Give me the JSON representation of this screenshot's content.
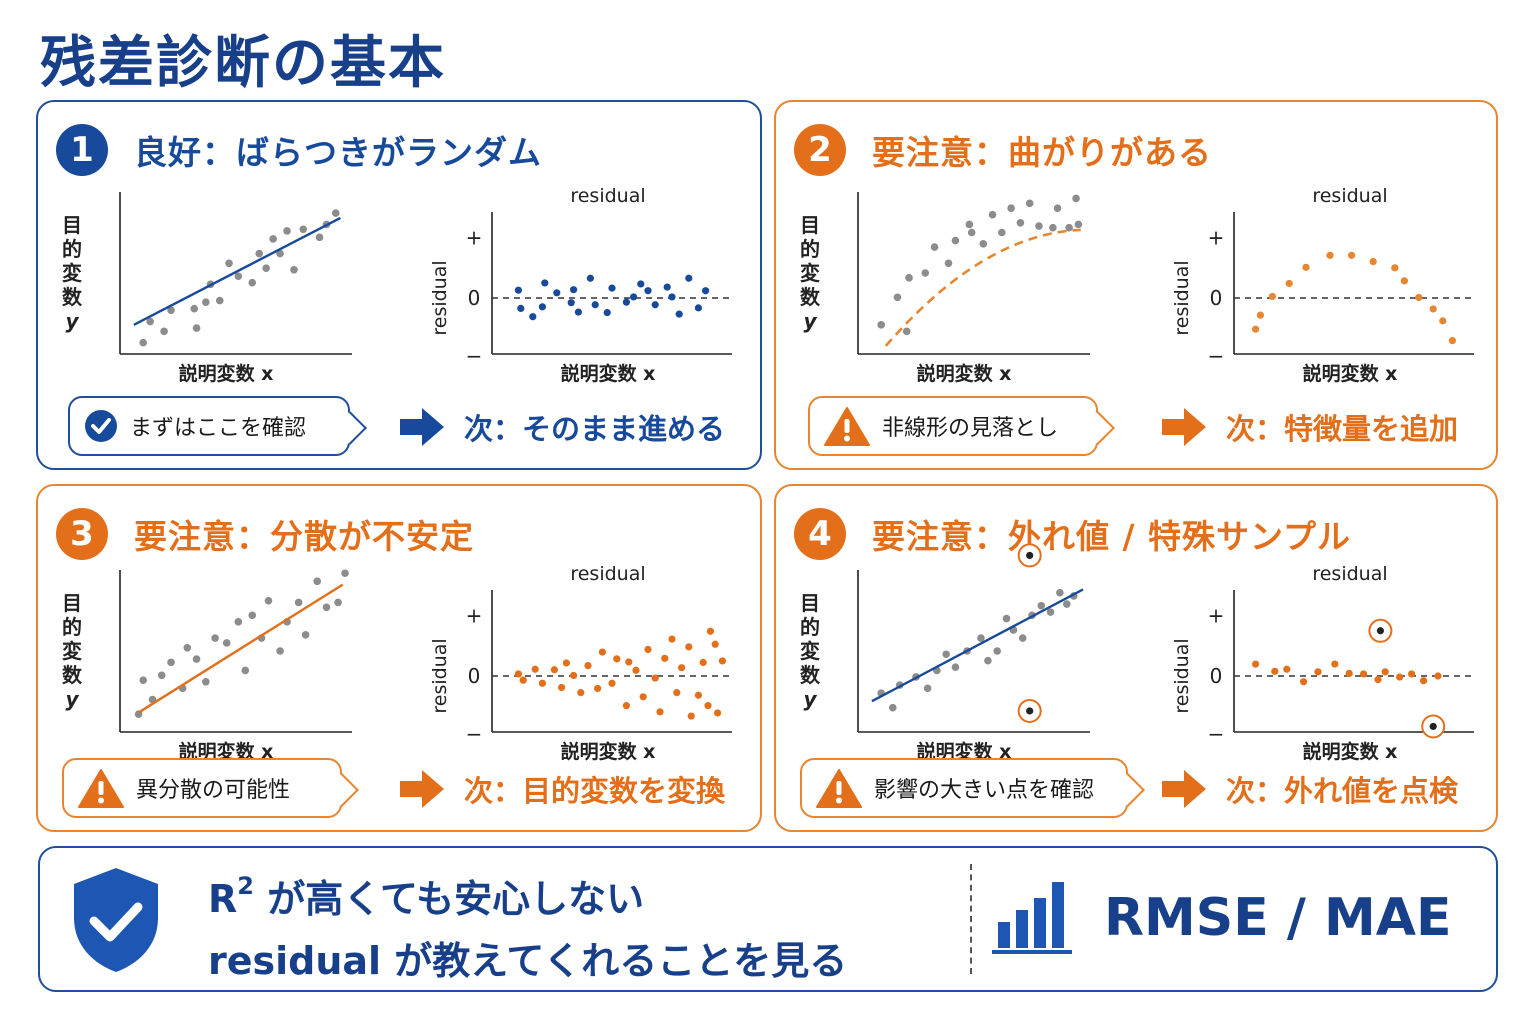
{
  "title": "残差診断の基本",
  "colors": {
    "blue": "#174a9a",
    "orange": "#e46f1b",
    "gray": "#8c8c8c",
    "orange_line": "#e8852f"
  },
  "panels": [
    {
      "number": "1",
      "theme": "blue",
      "title": "良好：ばらつきがランダム",
      "callout": "まずはここを確認",
      "callout_icon": "check-circle-icon",
      "next": "次：そのまま進める"
    },
    {
      "number": "2",
      "theme": "orange",
      "title": "要注意：曲がりがある",
      "callout": "非線形の見落とし",
      "callout_icon": "warning-icon",
      "next": "次：特徴量を追加"
    },
    {
      "number": "3",
      "theme": "orange",
      "title": "要注意：分散が不安定",
      "callout": "異分散の可能性",
      "callout_icon": "warning-icon",
      "next": "次：目的変数を変換"
    },
    {
      "number": "4",
      "theme": "orange",
      "title": "要注意：外れ値 / 特殊サンプル",
      "callout": "影響の大きい点を確認",
      "callout_icon": "warning-icon",
      "next": "次：外れ値を点検"
    }
  ],
  "axis_labels": {
    "ylabel": [
      "目",
      "的",
      "変",
      "数",
      "y"
    ],
    "xlabel": "説明変数 x",
    "residual": "residual",
    "plus": "+",
    "zero": "0",
    "minus": "−"
  },
  "chart_data": [
    {
      "panel": 1,
      "type": "scatter",
      "kind": "fit",
      "fit": "linear",
      "line_color": "#174a9a",
      "points": [
        [
          0.1,
          0.07
        ],
        [
          0.13,
          0.2
        ],
        [
          0.19,
          0.14
        ],
        [
          0.22,
          0.27
        ],
        [
          0.32,
          0.28
        ],
        [
          0.33,
          0.16
        ],
        [
          0.37,
          0.32
        ],
        [
          0.39,
          0.43
        ],
        [
          0.43,
          0.33
        ],
        [
          0.47,
          0.56
        ],
        [
          0.51,
          0.48
        ],
        [
          0.57,
          0.44
        ],
        [
          0.6,
          0.62
        ],
        [
          0.63,
          0.53
        ],
        [
          0.66,
          0.71
        ],
        [
          0.69,
          0.62
        ],
        [
          0.72,
          0.76
        ],
        [
          0.75,
          0.52
        ],
        [
          0.79,
          0.77
        ],
        [
          0.86,
          0.72
        ],
        [
          0.89,
          0.8
        ],
        [
          0.93,
          0.87
        ]
      ],
      "line": [
        [
          0.06,
          0.18
        ],
        [
          0.95,
          0.84
        ]
      ]
    },
    {
      "panel": 1,
      "type": "scatter",
      "kind": "residual",
      "color": "#174a9a",
      "points": [
        [
          0.11,
          0.15
        ],
        [
          0.12,
          -0.2
        ],
        [
          0.17,
          -0.36
        ],
        [
          0.21,
          -0.17
        ],
        [
          0.22,
          0.29
        ],
        [
          0.27,
          0.1
        ],
        [
          0.33,
          -0.09
        ],
        [
          0.34,
          0.16
        ],
        [
          0.36,
          -0.27
        ],
        [
          0.41,
          0.38
        ],
        [
          0.43,
          -0.13
        ],
        [
          0.48,
          -0.28
        ],
        [
          0.5,
          0.19
        ],
        [
          0.56,
          -0.08
        ],
        [
          0.59,
          0.02
        ],
        [
          0.62,
          0.27
        ],
        [
          0.65,
          0.14
        ],
        [
          0.68,
          -0.13
        ],
        [
          0.73,
          0.21
        ],
        [
          0.75,
          0.02
        ],
        [
          0.78,
          -0.31
        ],
        [
          0.82,
          0.38
        ],
        [
          0.86,
          -0.19
        ],
        [
          0.89,
          0.14
        ]
      ]
    },
    {
      "panel": 2,
      "type": "scatter",
      "kind": "fit",
      "fit": "curve",
      "line_color": "#e8852f",
      "line_dashed": true,
      "points": [
        [
          0.1,
          0.18
        ],
        [
          0.17,
          0.35
        ],
        [
          0.21,
          0.14
        ],
        [
          0.22,
          0.47
        ],
        [
          0.29,
          0.5
        ],
        [
          0.33,
          0.66
        ],
        [
          0.39,
          0.56
        ],
        [
          0.42,
          0.7
        ],
        [
          0.48,
          0.8
        ],
        [
          0.49,
          0.75
        ],
        [
          0.54,
          0.68
        ],
        [
          0.58,
          0.86
        ],
        [
          0.62,
          0.75
        ],
        [
          0.66,
          0.9
        ],
        [
          0.7,
          0.81
        ],
        [
          0.74,
          0.93
        ],
        [
          0.78,
          0.79
        ],
        [
          0.84,
          0.78
        ],
        [
          0.86,
          0.9
        ],
        [
          0.91,
          0.78
        ],
        [
          0.94,
          0.96
        ],
        [
          0.95,
          0.8
        ]
      ],
      "line": "quadratic"
    },
    {
      "panel": 2,
      "type": "scatter",
      "kind": "residual",
      "color": "#e8852f",
      "points": [
        [
          0.09,
          -0.6
        ],
        [
          0.11,
          -0.33
        ],
        [
          0.16,
          0.03
        ],
        [
          0.23,
          0.28
        ],
        [
          0.3,
          0.59
        ],
        [
          0.4,
          0.82
        ],
        [
          0.49,
          0.82
        ],
        [
          0.58,
          0.7
        ],
        [
          0.67,
          0.58
        ],
        [
          0.71,
          0.33
        ],
        [
          0.77,
          0.01
        ],
        [
          0.83,
          -0.21
        ],
        [
          0.87,
          -0.44
        ],
        [
          0.91,
          -0.82
        ]
      ]
    },
    {
      "panel": 3,
      "type": "scatter",
      "kind": "fit",
      "fit": "linear",
      "line_color": "#e46f1b",
      "points": [
        [
          0.08,
          0.11
        ],
        [
          0.1,
          0.32
        ],
        [
          0.14,
          0.2
        ],
        [
          0.18,
          0.35
        ],
        [
          0.22,
          0.43
        ],
        [
          0.27,
          0.27
        ],
        [
          0.29,
          0.52
        ],
        [
          0.33,
          0.45
        ],
        [
          0.37,
          0.31
        ],
        [
          0.41,
          0.58
        ],
        [
          0.46,
          0.55
        ],
        [
          0.51,
          0.68
        ],
        [
          0.54,
          0.38
        ],
        [
          0.57,
          0.72
        ],
        [
          0.61,
          0.58
        ],
        [
          0.64,
          0.81
        ],
        [
          0.69,
          0.5
        ],
        [
          0.72,
          0.68
        ],
        [
          0.77,
          0.8
        ],
        [
          0.8,
          0.6
        ],
        [
          0.85,
          0.93
        ],
        [
          0.89,
          0.77
        ],
        [
          0.94,
          0.8
        ],
        [
          0.97,
          0.98
        ]
      ],
      "line": [
        [
          0.08,
          0.12
        ],
        [
          0.96,
          0.91
        ]
      ]
    },
    {
      "panel": 3,
      "type": "scatter",
      "kind": "residual",
      "color": "#e46f1b",
      "points": [
        [
          0.11,
          0.04
        ],
        [
          0.13,
          -0.08
        ],
        [
          0.18,
          0.13
        ],
        [
          0.21,
          -0.14
        ],
        [
          0.26,
          0.12
        ],
        [
          0.29,
          -0.22
        ],
        [
          0.31,
          0.25
        ],
        [
          0.34,
          0.01
        ],
        [
          0.37,
          -0.32
        ],
        [
          0.4,
          0.2
        ],
        [
          0.44,
          -0.24
        ],
        [
          0.46,
          0.46
        ],
        [
          0.5,
          -0.14
        ],
        [
          0.52,
          0.33
        ],
        [
          0.56,
          -0.57
        ],
        [
          0.57,
          0.27
        ],
        [
          0.6,
          0.11
        ],
        [
          0.63,
          -0.4
        ],
        [
          0.65,
          0.51
        ],
        [
          0.68,
          -0.04
        ],
        [
          0.7,
          -0.69
        ],
        [
          0.72,
          0.34
        ],
        [
          0.75,
          0.71
        ],
        [
          0.77,
          -0.32
        ],
        [
          0.79,
          0.16
        ],
        [
          0.82,
          0.56
        ],
        [
          0.83,
          -0.77
        ],
        [
          0.86,
          -0.37
        ],
        [
          0.88,
          0.26
        ],
        [
          0.9,
          -0.57
        ],
        [
          0.91,
          0.86
        ],
        [
          0.93,
          0.61
        ],
        [
          0.94,
          -0.71
        ],
        [
          0.96,
          0.29
        ]
      ]
    },
    {
      "panel": 4,
      "type": "scatter",
      "kind": "fit",
      "fit": "linear",
      "line_color": "#174a9a",
      "points": [
        [
          0.1,
          0.24
        ],
        [
          0.15,
          0.15
        ],
        [
          0.18,
          0.29
        ],
        [
          0.25,
          0.34
        ],
        [
          0.3,
          0.27
        ],
        [
          0.34,
          0.38
        ],
        [
          0.38,
          0.48
        ],
        [
          0.42,
          0.4
        ],
        [
          0.47,
          0.5
        ],
        [
          0.53,
          0.58
        ],
        [
          0.56,
          0.44
        ],
        [
          0.6,
          0.5
        ],
        [
          0.64,
          0.7
        ],
        [
          0.67,
          0.63
        ],
        [
          0.71,
          0.58
        ],
        [
          0.75,
          0.72
        ],
        [
          0.79,
          0.78
        ],
        [
          0.83,
          0.74
        ],
        [
          0.87,
          0.86
        ],
        [
          0.9,
          0.79
        ],
        [
          0.93,
          0.84
        ]
      ],
      "outliers": [
        [
          0.74,
          1.09
        ],
        [
          0.74,
          0.13
        ]
      ],
      "line": [
        [
          0.06,
          0.19
        ],
        [
          0.97,
          0.88
        ]
      ]
    },
    {
      "panel": 4,
      "type": "scatter",
      "kind": "residual",
      "color": "#e46f1b",
      "points": [
        [
          0.09,
          0.23
        ],
        [
          0.17,
          0.09
        ],
        [
          0.22,
          0.13
        ],
        [
          0.29,
          -0.11
        ],
        [
          0.35,
          0.08
        ],
        [
          0.42,
          0.23
        ],
        [
          0.48,
          0.05
        ],
        [
          0.54,
          0.04
        ],
        [
          0.6,
          -0.07
        ],
        [
          0.63,
          0.08
        ],
        [
          0.69,
          -0.02
        ],
        [
          0.74,
          0.04
        ],
        [
          0.79,
          -0.09
        ],
        [
          0.85,
          0.0
        ]
      ],
      "outliers": [
        [
          0.61,
          0.87
        ],
        [
          0.83,
          -0.97
        ]
      ]
    }
  ],
  "bottom": {
    "line1_prefix": "R",
    "line1_sup": "2",
    "line1_rest": " が高くても安心しない",
    "line2": "residual が教えてくれることを見る",
    "metric": "RMSE / MAE",
    "shield_icon": "shield-check-icon",
    "chart_icon": "bar-chart-icon"
  }
}
